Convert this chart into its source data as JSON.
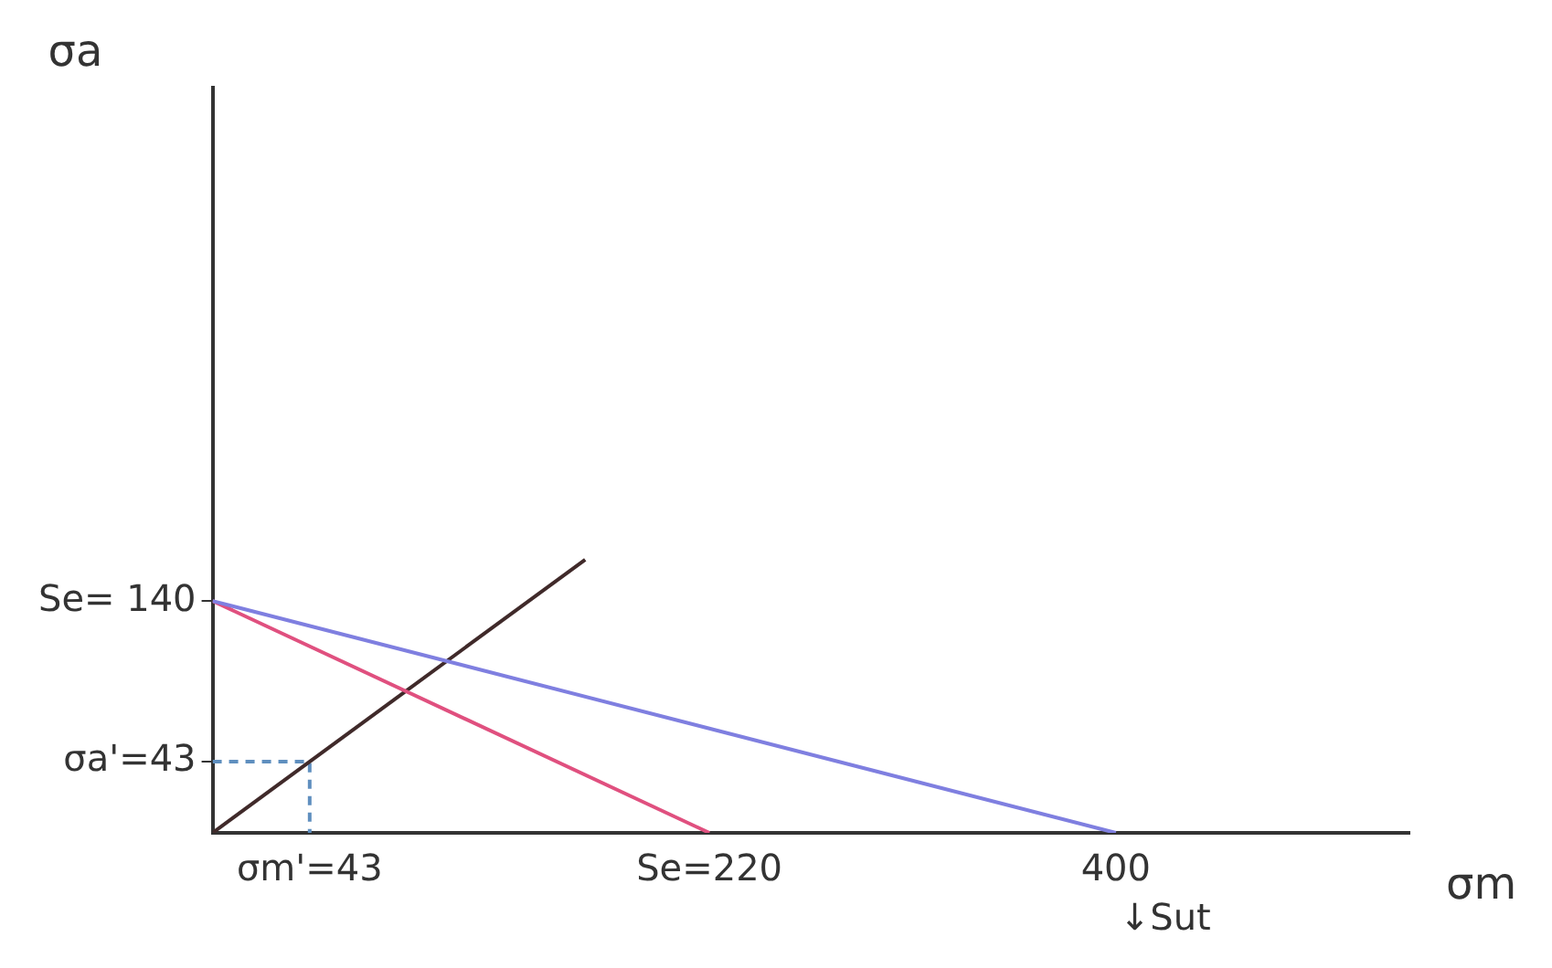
{
  "chart_data": {
    "type": "line",
    "xlabel": "σm",
    "ylabel": "σa",
    "xlim": [
      0,
      530
    ],
    "ylim": [
      0,
      450
    ],
    "xticks": [
      {
        "value": 43,
        "label": "σm'=43"
      },
      {
        "value": 220,
        "label": "Se=220"
      },
      {
        "value": 400,
        "label": "400"
      }
    ],
    "yticks": [
      {
        "value": 43,
        "label": "σa'=43"
      },
      {
        "value": 140,
        "label": "Se= 140"
      }
    ],
    "grid": false,
    "legend": false,
    "marker": "none",
    "series": [
      {
        "color": "#7f7fe0",
        "x": [
          0,
          400
        ],
        "values": [
          140,
          0
        ]
      },
      {
        "color": "#e0507f",
        "x": [
          0,
          220
        ],
        "values": [
          140,
          0
        ]
      },
      {
        "color": "#402a2a",
        "x": [
          0,
          165
        ],
        "values": [
          0,
          165
        ]
      },
      {
        "color": "#5f8fbf",
        "x": [
          0,
          43,
          43
        ],
        "values": [
          43,
          43,
          0
        ],
        "line_style": "dashed"
      }
    ],
    "annotations": [
      {
        "text": "↓Sut",
        "x": 400,
        "y": 0
      }
    ]
  }
}
